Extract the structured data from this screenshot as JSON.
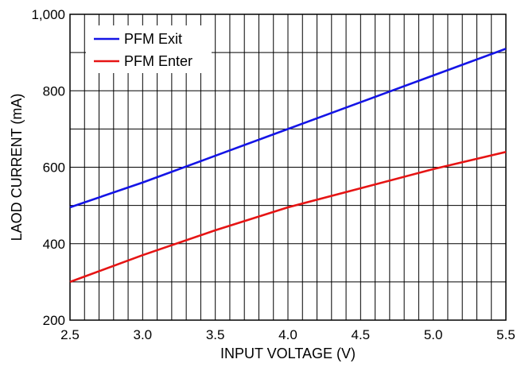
{
  "chart_data": {
    "type": "line",
    "xlabel": "INPUT VOLTAGE (V)",
    "ylabel": "LAOD CURRENT (mA)",
    "xlim": [
      2.5,
      5.5
    ],
    "ylim": [
      200,
      1000
    ],
    "x_ticks": [
      2.5,
      3.0,
      3.5,
      4.0,
      4.5,
      5.0,
      5.5
    ],
    "x_tick_labels": [
      "2.5",
      "3.0",
      "3.5",
      "4.0",
      "4.5",
      "5.0",
      "5.5"
    ],
    "y_ticks": [
      200,
      400,
      600,
      800,
      1000
    ],
    "y_tick_labels": [
      "200",
      "400",
      "600",
      "800",
      "1,000"
    ],
    "grid": true,
    "minor_grid_x_step": 0.1,
    "minor_grid_y_step": 100,
    "legend_position": "top-left",
    "series": [
      {
        "name": "PFM Exit",
        "color": "#1414e6",
        "x": [
          2.5,
          3.0,
          3.5,
          4.0,
          4.5,
          5.0,
          5.5
        ],
        "y": [
          495,
          560,
          630,
          700,
          770,
          840,
          910
        ]
      },
      {
        "name": "PFM Enter",
        "color": "#e61414",
        "x": [
          2.5,
          3.0,
          3.5,
          4.0,
          4.5,
          5.0,
          5.5
        ],
        "y": [
          300,
          370,
          435,
          495,
          545,
          595,
          640
        ]
      }
    ]
  }
}
